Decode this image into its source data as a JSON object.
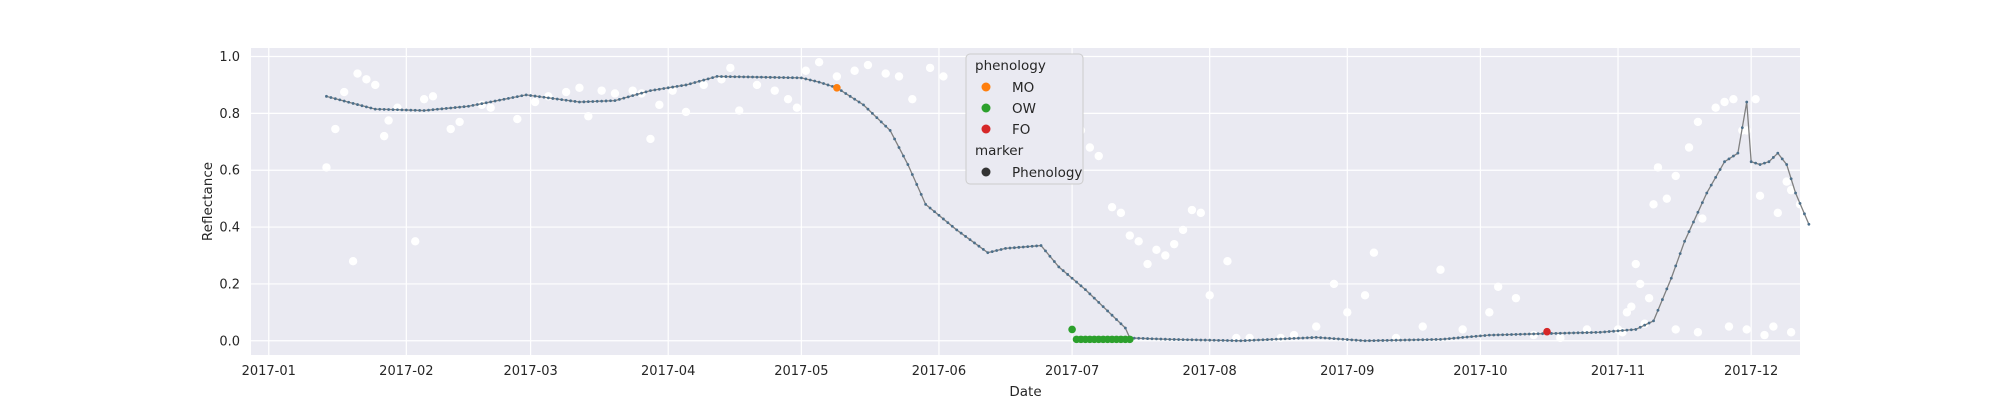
{
  "chart_data": {
    "type": "scatter",
    "xlabel": "Date",
    "ylabel": "Reflectance",
    "x_range": [
      "2016-12-28",
      "2017-12-12"
    ],
    "ylim": [
      -0.05,
      1.03
    ],
    "grid": true,
    "x_ticks": [
      "2017-01-01",
      "2017-02-01",
      "2017-03-01",
      "2017-04-01",
      "2017-05-01",
      "2017-06-01",
      "2017-07-01",
      "2017-08-01",
      "2017-09-01",
      "2017-10-01",
      "2017-11-01",
      "2017-12-01"
    ],
    "x_tick_labels": [
      "2017-01",
      "2017-02",
      "2017-03",
      "2017-04",
      "2017-05",
      "2017-06",
      "2017-07",
      "2017-08",
      "2017-09",
      "2017-10",
      "2017-11",
      "2017-12"
    ],
    "y_ticks": [
      0.0,
      0.2,
      0.4,
      0.6,
      0.8,
      1.0
    ],
    "y_tick_labels": [
      "0.0",
      "0.2",
      "0.4",
      "0.6",
      "0.8",
      "1.0"
    ],
    "colors": {
      "background": "#eaeaf2",
      "grid": "#ffffff",
      "raw_points": "#ffffff",
      "smoothed_line": "#808080",
      "smoothed_points": "#4c6f8a",
      "MO": "#ff7f0e",
      "OW": "#2ca02c",
      "FO": "#d62728",
      "marker": "#333333"
    },
    "legend": {
      "placement": "top-center",
      "title_1": "phenology",
      "items": [
        {
          "label": "MO",
          "color_key": "MO"
        },
        {
          "label": "OW",
          "color_key": "OW"
        },
        {
          "label": "FO",
          "color_key": "FO"
        }
      ],
      "title_2": "marker",
      "marker_item": {
        "label": "Phenology",
        "color_key": "marker"
      }
    },
    "smoothed_anchors": [
      [
        "2017-01-14",
        0.86
      ],
      [
        "2017-01-20",
        0.835
      ],
      [
        "2017-01-25",
        0.815
      ],
      [
        "2017-02-05",
        0.81
      ],
      [
        "2017-02-15",
        0.825
      ],
      [
        "2017-02-28",
        0.865
      ],
      [
        "2017-03-12",
        0.84
      ],
      [
        "2017-03-20",
        0.845
      ],
      [
        "2017-03-28",
        0.88
      ],
      [
        "2017-04-05",
        0.9
      ],
      [
        "2017-04-12",
        0.93
      ],
      [
        "2017-05-01",
        0.925
      ],
      [
        "2017-05-05",
        0.91
      ],
      [
        "2017-05-09",
        0.89
      ],
      [
        "2017-05-15",
        0.83
      ],
      [
        "2017-05-21",
        0.74
      ],
      [
        "2017-05-25",
        0.62
      ],
      [
        "2017-05-29",
        0.48
      ],
      [
        "2017-06-05",
        0.39
      ],
      [
        "2017-06-12",
        0.31
      ],
      [
        "2017-06-16",
        0.325
      ],
      [
        "2017-06-24",
        0.335
      ],
      [
        "2017-06-28",
        0.26
      ],
      [
        "2017-07-04",
        0.18
      ],
      [
        "2017-07-13",
        0.045
      ],
      [
        "2017-07-14",
        0.01
      ],
      [
        "2017-07-23",
        0.005
      ],
      [
        "2017-08-08",
        0.0
      ],
      [
        "2017-08-25",
        0.012
      ],
      [
        "2017-09-05",
        0.0
      ],
      [
        "2017-09-22",
        0.005
      ],
      [
        "2017-10-03",
        0.02
      ],
      [
        "2017-10-15",
        0.025
      ],
      [
        "2017-10-28",
        0.03
      ],
      [
        "2017-11-05",
        0.04
      ],
      [
        "2017-11-09",
        0.07
      ],
      [
        "2017-11-13",
        0.22
      ],
      [
        "2017-11-16",
        0.35
      ],
      [
        "2017-11-21",
        0.52
      ],
      [
        "2017-11-25",
        0.63
      ],
      [
        "2017-11-28",
        0.66
      ],
      [
        "2017-11-30",
        0.84
      ],
      [
        "2017-12-01",
        0.63
      ],
      [
        "2017-12-03",
        0.62
      ],
      [
        "2017-12-05",
        0.63
      ],
      [
        "2017-12-07",
        0.66
      ],
      [
        "2017-12-09",
        0.62
      ],
      [
        "2017-12-11",
        0.52
      ],
      [
        "2017-12-14",
        0.41
      ]
    ],
    "raw_points": [
      [
        "2017-01-14",
        0.61
      ],
      [
        "2017-01-16",
        0.745
      ],
      [
        "2017-01-18",
        0.875
      ],
      [
        "2017-01-20",
        0.28
      ],
      [
        "2017-01-21",
        0.94
      ],
      [
        "2017-01-23",
        0.92
      ],
      [
        "2017-01-25",
        0.9
      ],
      [
        "2017-01-27",
        0.72
      ],
      [
        "2017-01-28",
        0.775
      ],
      [
        "2017-01-30",
        0.82
      ],
      [
        "2017-02-03",
        0.35
      ],
      [
        "2017-02-05",
        0.85
      ],
      [
        "2017-02-07",
        0.86
      ],
      [
        "2017-02-11",
        0.745
      ],
      [
        "2017-02-13",
        0.77
      ],
      [
        "2017-02-18",
        0.83
      ],
      [
        "2017-02-20",
        0.82
      ],
      [
        "2017-02-26",
        0.78
      ],
      [
        "2017-03-02",
        0.84
      ],
      [
        "2017-03-05",
        0.86
      ],
      [
        "2017-03-09",
        0.875
      ],
      [
        "2017-03-12",
        0.89
      ],
      [
        "2017-03-14",
        0.79
      ],
      [
        "2017-03-17",
        0.88
      ],
      [
        "2017-03-20",
        0.87
      ],
      [
        "2017-03-24",
        0.88
      ],
      [
        "2017-03-26",
        0.87
      ],
      [
        "2017-03-28",
        0.71
      ],
      [
        "2017-03-30",
        0.83
      ],
      [
        "2017-04-02",
        0.88
      ],
      [
        "2017-04-05",
        0.805
      ],
      [
        "2017-04-09",
        0.9
      ],
      [
        "2017-04-13",
        0.92
      ],
      [
        "2017-04-15",
        0.96
      ],
      [
        "2017-04-17",
        0.81
      ],
      [
        "2017-04-21",
        0.9
      ],
      [
        "2017-04-25",
        0.88
      ],
      [
        "2017-04-28",
        0.85
      ],
      [
        "2017-04-30",
        0.82
      ],
      [
        "2017-05-02",
        0.95
      ],
      [
        "2017-05-05",
        0.98
      ],
      [
        "2017-05-09",
        0.93
      ],
      [
        "2017-05-13",
        0.95
      ],
      [
        "2017-05-16",
        0.97
      ],
      [
        "2017-05-20",
        0.94
      ],
      [
        "2017-05-23",
        0.93
      ],
      [
        "2017-05-26",
        0.85
      ],
      [
        "2017-05-30",
        0.96
      ],
      [
        "2017-06-02",
        0.93
      ],
      [
        "2017-06-08",
        0.94
      ],
      [
        "2017-06-11",
        0.92
      ],
      [
        "2017-06-15",
        0.93
      ],
      [
        "2017-06-18",
        0.94
      ],
      [
        "2017-06-20",
        0.93
      ],
      [
        "2017-06-21",
        0.86
      ],
      [
        "2017-06-23",
        0.83
      ],
      [
        "2017-06-26",
        0.8
      ],
      [
        "2017-06-29",
        0.82
      ],
      [
        "2017-07-03",
        0.74
      ],
      [
        "2017-07-05",
        0.68
      ],
      [
        "2017-07-07",
        0.65
      ],
      [
        "2017-07-10",
        0.47
      ],
      [
        "2017-07-12",
        0.45
      ],
      [
        "2017-07-14",
        0.37
      ],
      [
        "2017-07-16",
        0.35
      ],
      [
        "2017-07-18",
        0.27
      ],
      [
        "2017-07-20",
        0.32
      ],
      [
        "2017-07-22",
        0.3
      ],
      [
        "2017-07-24",
        0.34
      ],
      [
        "2017-07-26",
        0.39
      ],
      [
        "2017-07-28",
        0.46
      ],
      [
        "2017-07-30",
        0.45
      ],
      [
        "2017-08-01",
        0.16
      ],
      [
        "2017-08-05",
        0.28
      ],
      [
        "2017-08-07",
        0.01
      ],
      [
        "2017-08-10",
        0.01
      ],
      [
        "2017-08-17",
        0.01
      ],
      [
        "2017-08-20",
        0.02
      ],
      [
        "2017-08-25",
        0.05
      ],
      [
        "2017-08-29",
        0.2
      ],
      [
        "2017-09-01",
        0.1
      ],
      [
        "2017-09-05",
        0.16
      ],
      [
        "2017-09-07",
        0.31
      ],
      [
        "2017-09-12",
        0.01
      ],
      [
        "2017-09-18",
        0.05
      ],
      [
        "2017-09-22",
        0.25
      ],
      [
        "2017-09-27",
        0.04
      ],
      [
        "2017-10-03",
        0.1
      ],
      [
        "2017-10-05",
        0.19
      ],
      [
        "2017-10-09",
        0.15
      ],
      [
        "2017-10-13",
        0.02
      ],
      [
        "2017-10-19",
        0.01
      ],
      [
        "2017-10-25",
        0.04
      ],
      [
        "2017-11-02",
        0.03
      ],
      [
        "2017-11-07",
        0.06
      ],
      [
        "2017-11-14",
        0.04
      ],
      [
        "2017-11-19",
        0.03
      ],
      [
        "2017-11-26",
        0.05
      ],
      [
        "2017-11-30",
        0.04
      ],
      [
        "2017-12-04",
        0.02
      ],
      [
        "2017-12-06",
        0.05
      ],
      [
        "2017-12-10",
        0.03
      ],
      [
        "2017-11-01",
        0.04
      ],
      [
        "2017-11-03",
        0.1
      ],
      [
        "2017-11-04",
        0.12
      ],
      [
        "2017-11-05",
        0.27
      ],
      [
        "2017-11-06",
        0.2
      ],
      [
        "2017-11-08",
        0.15
      ],
      [
        "2017-11-09",
        0.48
      ],
      [
        "2017-11-10",
        0.61
      ],
      [
        "2017-11-12",
        0.5
      ],
      [
        "2017-11-14",
        0.58
      ],
      [
        "2017-11-17",
        0.68
      ],
      [
        "2017-11-19",
        0.77
      ],
      [
        "2017-11-20",
        0.43
      ],
      [
        "2017-11-23",
        0.82
      ],
      [
        "2017-11-25",
        0.84
      ],
      [
        "2017-11-27",
        0.85
      ],
      [
        "2017-11-29",
        0.74
      ],
      [
        "2017-11-30",
        0.74
      ],
      [
        "2017-12-02",
        0.85
      ],
      [
        "2017-12-03",
        0.51
      ],
      [
        "2017-12-07",
        0.45
      ],
      [
        "2017-12-09",
        0.56
      ],
      [
        "2017-12-10",
        0.53
      ],
      [
        "2017-12-12",
        0.48
      ]
    ],
    "phenology_points": [
      {
        "class": "MO",
        "date": "2017-05-09",
        "value": 0.89
      },
      {
        "class": "OW",
        "dates": [
          "2017-07-01",
          "2017-07-02",
          "2017-07-03",
          "2017-07-04",
          "2017-07-05",
          "2017-07-06",
          "2017-07-07",
          "2017-07-08",
          "2017-07-09",
          "2017-07-10",
          "2017-07-11",
          "2017-07-12",
          "2017-07-13",
          "2017-07-14"
        ],
        "first_value": 0.04,
        "value": 0.005
      },
      {
        "class": "FO",
        "date": "2017-10-16",
        "value": 0.032
      }
    ]
  }
}
